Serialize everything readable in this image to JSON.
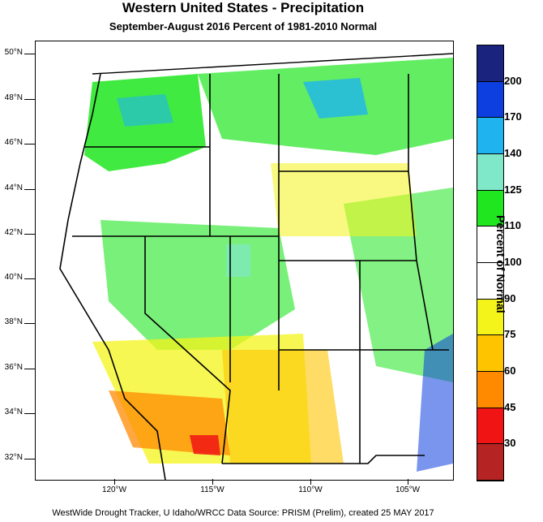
{
  "title": "Western United States - Precipitation",
  "subtitle": "September-August 2016  Percent of 1981-2010 Normal",
  "footer": "WestWide Drought Tracker, U Idaho/WRCC Data Source: PRISM (Prelim), created 25 MAY 2017",
  "map": {
    "lat_labels": [
      "50°N",
      "48°N",
      "46°N",
      "44°N",
      "42°N",
      "40°N",
      "38°N",
      "36°N",
      "34°N",
      "32°N"
    ],
    "lon_labels": [
      "120°W",
      "115°W",
      "110°W",
      "105°W"
    ]
  },
  "legend": {
    "title": "Percent of Normal",
    "labels": [
      "200",
      "170",
      "140",
      "125",
      "110",
      "100",
      "90",
      "75",
      "60",
      "45",
      "30"
    ],
    "colors": [
      "#1a237e",
      "#0c3ee0",
      "#1fb4f0",
      "#7fe8c8",
      "#1fe61f",
      "#ffffff",
      "#ffffff",
      "#f4f41a",
      "#ffc400",
      "#ff8a00",
      "#f01414",
      "#b52323"
    ]
  }
}
